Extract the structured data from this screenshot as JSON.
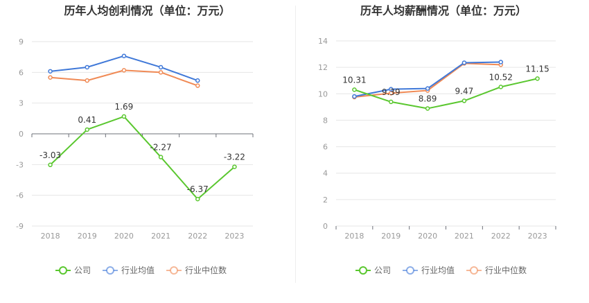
{
  "chart_data": [
    {
      "type": "line",
      "title": "历年人均创利情况（单位：万元）",
      "categories": [
        "2018",
        "2019",
        "2020",
        "2021",
        "2022",
        "2023"
      ],
      "ylim": [
        -9,
        9
      ],
      "yticks": [
        -9,
        -6,
        -3,
        0,
        3,
        6,
        9
      ],
      "series": [
        {
          "name": "公司",
          "color": "#5ac72f",
          "values": [
            -3.03,
            0.41,
            1.69,
            -2.27,
            -6.37,
            -3.22
          ],
          "labels": [
            "-3.03",
            "0.41",
            "1.69",
            "-2.27",
            "-6.37",
            "-3.22"
          ]
        },
        {
          "name": "行业均值",
          "color": "#3f78d8",
          "values": [
            6.1,
            6.5,
            7.6,
            6.5,
            5.2,
            null
          ]
        },
        {
          "name": "行业中位数",
          "color": "#f08a55",
          "values": [
            5.5,
            5.2,
            6.2,
            6.0,
            4.7,
            null
          ]
        }
      ],
      "legend": "bottom",
      "grid": true
    },
    {
      "type": "line",
      "title": "历年人均薪酬情况（单位：万元）",
      "categories": [
        "2018",
        "2019",
        "2020",
        "2021",
        "2022",
        "2023"
      ],
      "ylim": [
        0,
        14
      ],
      "yticks": [
        0,
        2,
        4,
        6,
        8,
        10,
        12,
        14
      ],
      "series": [
        {
          "name": "公司",
          "color": "#5ac72f",
          "values": [
            10.31,
            9.39,
            8.89,
            9.47,
            10.52,
            11.15
          ],
          "labels": [
            "10.31",
            "9.39",
            "8.89",
            "9.47",
            "10.52",
            "11.15"
          ]
        },
        {
          "name": "行业均值",
          "color": "#3f78d8",
          "values": [
            9.8,
            10.35,
            10.4,
            12.35,
            12.4,
            null
          ]
        },
        {
          "name": "行业中位数",
          "color": "#f08a55",
          "values": [
            9.75,
            10.05,
            10.25,
            12.3,
            12.2,
            null
          ]
        }
      ],
      "legend": "bottom",
      "grid": true
    }
  ]
}
